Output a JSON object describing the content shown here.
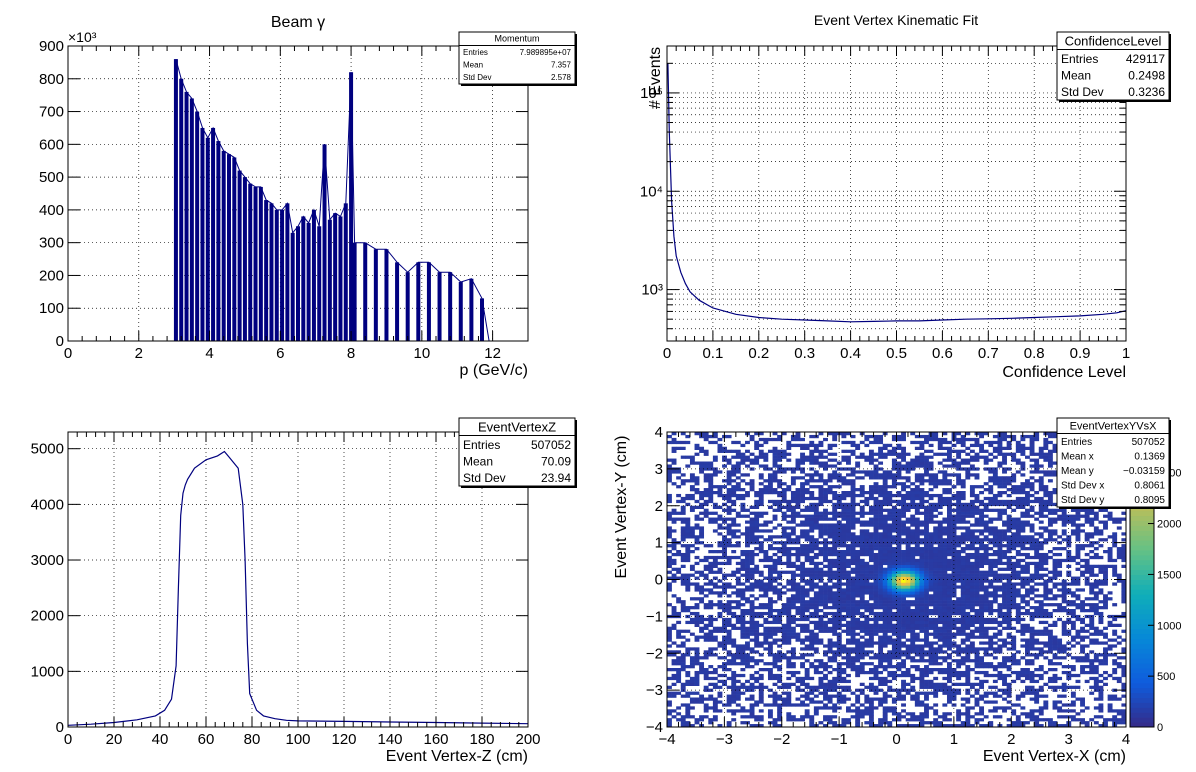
{
  "colors": {
    "line": "#00007f",
    "grid": "#000000",
    "frame": "#000000",
    "background": "#ffffff"
  },
  "chart_data": [
    {
      "type": "bar",
      "title": "Beam γ",
      "xlabel": "p (GeV/c)",
      "ylabel": "",
      "yexponent": "×10³",
      "xlim": [
        0,
        13
      ],
      "ylim": [
        0,
        900
      ],
      "xticks": [
        "0",
        "2",
        "4",
        "6",
        "8",
        "10",
        "12"
      ],
      "yticks": [
        "0",
        "100",
        "200",
        "300",
        "400",
        "500",
        "600",
        "700",
        "800",
        "900"
      ],
      "grid": true,
      "stats": {
        "name": "Momentum",
        "rows": [
          [
            "Entries",
            "7.989895e+07"
          ],
          [
            "Mean",
            "7.357"
          ],
          [
            "Std Dev",
            "2.578"
          ]
        ]
      },
      "x": [
        3.05,
        3.2,
        3.35,
        3.5,
        3.65,
        3.8,
        3.95,
        4.1,
        4.25,
        4.4,
        4.55,
        4.7,
        4.85,
        5.0,
        5.15,
        5.3,
        5.45,
        5.6,
        5.75,
        5.9,
        6.05,
        6.2,
        6.35,
        6.5,
        6.65,
        6.8,
        6.95,
        7.1,
        7.25,
        7.4,
        7.55,
        7.7,
        7.85,
        8.0,
        8.1,
        8.4,
        8.7,
        9.0,
        9.3,
        9.6,
        9.9,
        10.2,
        10.5,
        10.8,
        11.1,
        11.4,
        11.7,
        11.9
      ],
      "values": [
        860,
        800,
        760,
        740,
        700,
        650,
        620,
        650,
        610,
        580,
        570,
        560,
        520,
        500,
        480,
        470,
        470,
        430,
        420,
        400,
        400,
        420,
        330,
        350,
        380,
        360,
        400,
        350,
        600,
        370,
        390,
        380,
        420,
        820,
        300,
        300,
        280,
        280,
        240,
        210,
        240,
        240,
        210,
        210,
        180,
        190,
        130,
        0
      ]
    },
    {
      "type": "line",
      "title": "Event Vertex Kinematic Fit",
      "xlabel": "Confidence Level",
      "ylabel": "# Events",
      "yscale": "log",
      "xlim": [
        0,
        1
      ],
      "ylim": [
        300,
        300000
      ],
      "xticks": [
        "0",
        "0.1",
        "0.2",
        "0.3",
        "0.4",
        "0.5",
        "0.6",
        "0.7",
        "0.8",
        "0.9",
        "1"
      ],
      "yticks": [
        "10³",
        "10⁴",
        "10⁵"
      ],
      "grid": true,
      "stats": {
        "name": "ConfidenceLevel",
        "rows": [
          [
            "Entries",
            "429117"
          ],
          [
            "Mean",
            "0.2498"
          ],
          [
            "Std Dev",
            "0.3236"
          ]
        ]
      },
      "x": [
        0.002,
        0.005,
        0.01,
        0.015,
        0.02,
        0.03,
        0.04,
        0.05,
        0.07,
        0.1,
        0.15,
        0.2,
        0.25,
        0.3,
        0.35,
        0.4,
        0.45,
        0.5,
        0.55,
        0.6,
        0.65,
        0.7,
        0.75,
        0.8,
        0.85,
        0.9,
        0.95,
        0.98,
        1.0
      ],
      "values": [
        200000,
        40000,
        8000,
        3500,
        2200,
        1500,
        1150,
        950,
        780,
        650,
        560,
        520,
        500,
        490,
        480,
        470,
        475,
        480,
        480,
        490,
        500,
        505,
        510,
        520,
        530,
        540,
        560,
        580,
        610
      ]
    },
    {
      "type": "line",
      "title": "",
      "xlabel": "Event Vertex-Z (cm)",
      "ylabel": "",
      "xlim": [
        0,
        200
      ],
      "ylim": [
        0,
        5300
      ],
      "xticks": [
        "0",
        "20",
        "40",
        "60",
        "80",
        "100",
        "120",
        "140",
        "160",
        "180",
        "200"
      ],
      "yticks": [
        "0",
        "1000",
        "2000",
        "3000",
        "4000",
        "5000"
      ],
      "grid": true,
      "stats": {
        "name": "EventVertexZ",
        "rows": [
          [
            "Entries",
            "507052"
          ],
          [
            "Mean",
            "70.09"
          ],
          [
            "Std Dev",
            "23.94"
          ]
        ]
      },
      "x": [
        0,
        10,
        20,
        30,
        38,
        42,
        45,
        47,
        48,
        49,
        50,
        51,
        52,
        55,
        60,
        65,
        68,
        70,
        74,
        76,
        77,
        78,
        79,
        80,
        82,
        85,
        90,
        95,
        100,
        120,
        140,
        160,
        180,
        200
      ],
      "values": [
        30,
        50,
        80,
        130,
        200,
        300,
        500,
        1100,
        2500,
        3800,
        4200,
        4350,
        4450,
        4650,
        4800,
        4870,
        4950,
        4850,
        4650,
        4000,
        3000,
        1500,
        600,
        500,
        300,
        200,
        150,
        120,
        110,
        100,
        90,
        80,
        70,
        60
      ]
    },
    {
      "type": "heatmap",
      "title": "",
      "xlabel": "Event Vertex-X (cm)",
      "ylabel": "Event Vertex-Y (cm)",
      "xlim": [
        -4,
        4
      ],
      "ylim": [
        -4,
        4
      ],
      "zlim": [
        0,
        2900
      ],
      "xticks": [
        "−4",
        "−3",
        "−2",
        "−1",
        "0",
        "1",
        "2",
        "3",
        "4"
      ],
      "yticks": [
        "−4",
        "−3",
        "−2",
        "−1",
        "0",
        "1",
        "2",
        "3",
        "4"
      ],
      "zticks": [
        "0",
        "500",
        "1000",
        "1500",
        "2000",
        "2500"
      ],
      "grid": true,
      "peak": {
        "x": 0.14,
        "y": -0.03,
        "value": 2900
      },
      "stats": {
        "name": "EventVertexYVsX",
        "rows": [
          [
            "Entries",
            "507052"
          ],
          [
            "Mean x",
            "0.1369"
          ],
          [
            "Mean y",
            "−0.03159"
          ],
          [
            "Std Dev x",
            "0.8061"
          ],
          [
            "Std Dev y",
            "0.8095"
          ]
        ]
      }
    }
  ]
}
